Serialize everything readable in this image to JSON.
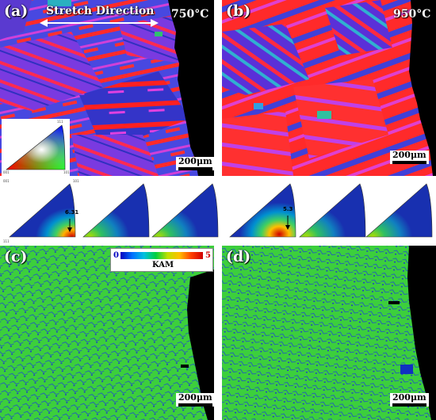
{
  "panels": {
    "a": {
      "label": "(a)",
      "temperature": "750°C",
      "scale": "200μm",
      "stretch_label": "Stretch Direction"
    },
    "b": {
      "label": "(b)",
      "temperature": "950°C",
      "scale": "200μm"
    },
    "c": {
      "label": "(c)",
      "scale": "200μm"
    },
    "d": {
      "label": "(d)",
      "scale": "200μm"
    }
  },
  "ipf_key": {
    "corner_top": "111",
    "corner_left": "001",
    "corner_right": "101"
  },
  "pole_figures": {
    "left_max": "6.31",
    "right_max": "5.3",
    "tri_labels": [
      "001",
      "101",
      "111"
    ]
  },
  "kam_legend": {
    "min": "0",
    "max": "5",
    "title": "KAM"
  },
  "colors": {
    "ipf_blue": "#3a3ad8",
    "ipf_red": "#ff2020",
    "ipf_magenta": "#c040e0",
    "kam_green": "#3cd23c",
    "kam_blue": "#1e3cc8"
  }
}
